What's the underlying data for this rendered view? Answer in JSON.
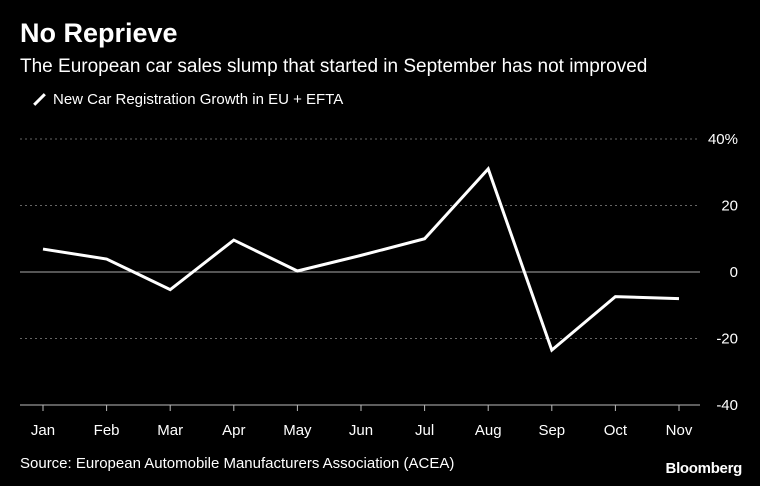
{
  "title": "No Reprieve",
  "subtitle": "The European car sales slump that started in September has not improved",
  "legend_label": "New Car Registration Growth in EU + EFTA",
  "source": "Source: European Automobile Manufacturers Association (ACEA)",
  "brand": "Bloomberg",
  "colors": {
    "background": "#000000",
    "line": "#ffffff",
    "grid": "#666666"
  },
  "chart_data": {
    "type": "line",
    "title": "No Reprieve",
    "categories": [
      "Jan",
      "Feb",
      "Mar",
      "Apr",
      "May",
      "Jun",
      "Jul",
      "Aug",
      "Sep",
      "Oct",
      "Nov"
    ],
    "series": [
      {
        "name": "New Car Registration Growth in EU + EFTA",
        "values": [
          6.9,
          3.9,
          -5.3,
          9.6,
          0.3,
          5.0,
          10.0,
          31.0,
          -23.5,
          -7.4,
          -8.0
        ]
      }
    ],
    "ylim": [
      -40,
      40
    ],
    "yticks": [
      40,
      20,
      0,
      -20,
      -40
    ],
    "ytick_labels": [
      "40%",
      "20",
      "0",
      "-20",
      "-40"
    ],
    "xlabel": "",
    "ylabel": ""
  }
}
